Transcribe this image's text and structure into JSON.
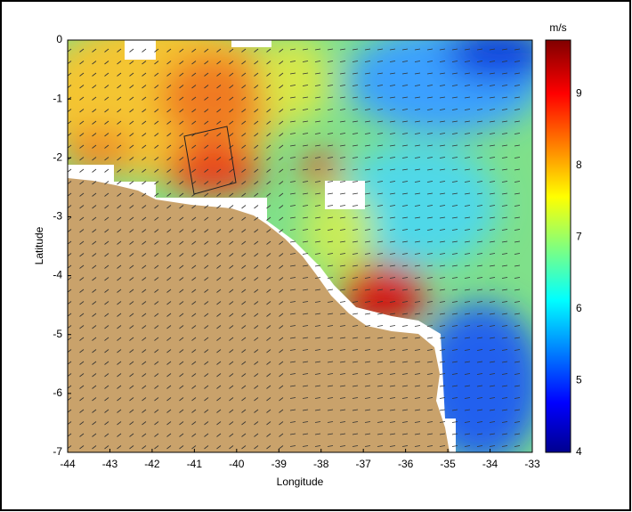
{
  "map": {
    "xlabel": "Longitude",
    "ylabel": "Latitude",
    "xlim": [
      -44,
      -33
    ],
    "ylim": [
      -7,
      0
    ],
    "xticks": [
      -44,
      -43,
      -42,
      -41,
      -40,
      -39,
      -38,
      -37,
      -36,
      -35,
      -34,
      -33
    ],
    "yticks": [
      -7,
      -6,
      -5,
      -4,
      -3,
      -2,
      -1,
      0
    ],
    "colorbar": {
      "label": "m/s",
      "lim": [
        4,
        9.75
      ],
      "ticks": [
        4,
        5,
        6,
        7,
        8,
        9
      ]
    }
  }
}
